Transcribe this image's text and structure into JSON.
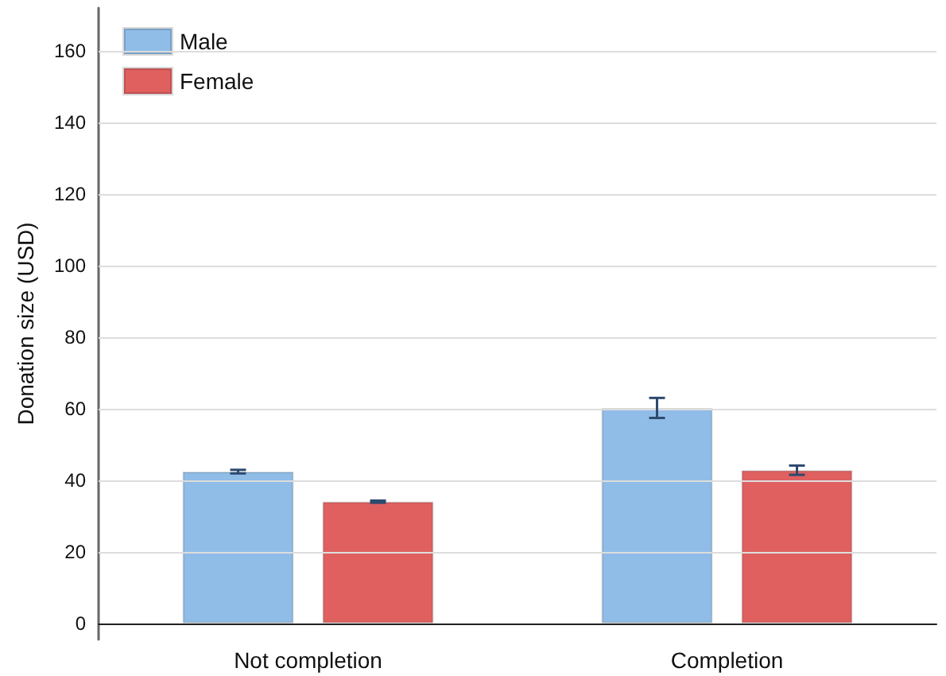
{
  "chart_data": {
    "type": "bar",
    "ylabel": "Donation size (USD)",
    "categories": [
      "Not completion",
      "Completion"
    ],
    "series": [
      {
        "name": "Male",
        "color": "#90bde8",
        "values": [
          42.4,
          60.2
        ],
        "errors": [
          0.5,
          2.8
        ]
      },
      {
        "name": "Female",
        "color": "#e06060",
        "values": [
          34.0,
          42.8
        ],
        "errors": [
          0.3,
          1.3
        ]
      }
    ],
    "ylim": [
      -4.5,
      172
    ],
    "yticks": [
      0,
      20,
      40,
      60,
      80,
      100,
      120,
      140,
      160
    ],
    "grid": "y",
    "legend": "top left"
  }
}
